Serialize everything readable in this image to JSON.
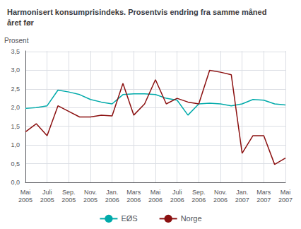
{
  "chart_data": {
    "type": "line",
    "title": "Harmonisert konsumprisindeks. Prosentvis endring fra samme måned\nåret før",
    "ylabel": "Prosent",
    "categories": [
      "Mai\n2005",
      null,
      "Juli\n2005",
      null,
      "Sep.\n2005",
      null,
      "Nov.\n2005",
      null,
      "Jan.\n2006",
      null,
      "Mars\n2006",
      null,
      "Mai\n2006",
      null,
      "Juli\n2006",
      null,
      "Sep.\n2006",
      null,
      "Nov.\n2006",
      null,
      "Jan.\n2007",
      null,
      "Mars\n2007",
      null,
      "Mai\n2007"
    ],
    "series": [
      {
        "name": "EØS",
        "color": "#00AAAA",
        "values": [
          1.98,
          2.0,
          2.05,
          2.47,
          2.42,
          2.35,
          2.22,
          2.15,
          2.1,
          2.35,
          2.37,
          2.37,
          2.35,
          2.25,
          2.2,
          1.8,
          2.1,
          2.12,
          2.1,
          2.05,
          2.1,
          2.22,
          2.2,
          2.1,
          2.07
        ]
      },
      {
        "name": "Norge",
        "color": "#8B1010",
        "values": [
          1.35,
          1.57,
          1.25,
          2.05,
          1.9,
          1.75,
          1.75,
          1.8,
          1.78,
          2.65,
          1.8,
          2.1,
          2.75,
          2.1,
          2.25,
          2.15,
          2.1,
          3.0,
          2.95,
          2.88,
          0.78,
          1.25,
          1.25,
          0.48,
          0.65
        ]
      }
    ],
    "ylim": [
      0,
      3.52
    ],
    "yticks": [
      {
        "value": 0.0,
        "label": "0,0"
      },
      {
        "value": 0.5,
        "label": "0,5"
      },
      {
        "value": 1.0,
        "label": "1,0"
      },
      {
        "value": 1.5,
        "label": "1,5"
      },
      {
        "value": 2.0,
        "label": "2,0"
      },
      {
        "value": 2.5,
        "label": "2,5"
      },
      {
        "value": 3.0,
        "label": "3,0"
      },
      {
        "value": 3.5,
        "label": "3,5"
      }
    ],
    "grid": true,
    "legend": "bottom"
  }
}
